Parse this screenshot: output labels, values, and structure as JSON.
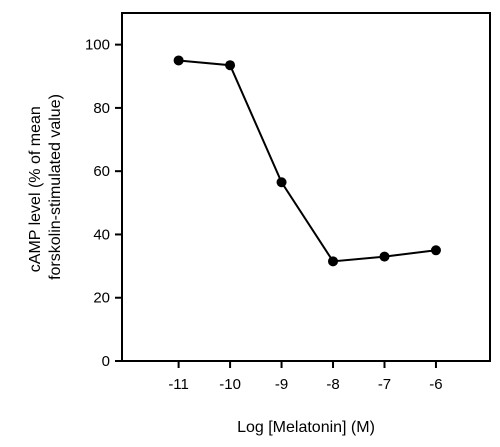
{
  "chart_data": {
    "type": "line",
    "x": [
      -11,
      -10,
      -9,
      -8,
      -7,
      -6
    ],
    "series": [
      {
        "values": [
          95,
          93.5,
          56.5,
          31.5,
          33,
          35
        ]
      }
    ],
    "xticks": [
      "-11",
      "-10",
      "-9",
      "-8",
      "-7",
      "-6"
    ],
    "yticks": [
      "0",
      "20",
      "40",
      "60",
      "80",
      "100"
    ],
    "xlabel": "Log [Melatonin] (M)",
    "ylabel_lines": [
      "cAMP level (% of mean",
      "forskolin-stimulated value)"
    ],
    "xlim": [
      -12.1,
      -4.95
    ],
    "ylim": [
      0,
      110
    ],
    "grid": false,
    "colors": {
      "line": "#000000",
      "marker": "#000000"
    }
  }
}
